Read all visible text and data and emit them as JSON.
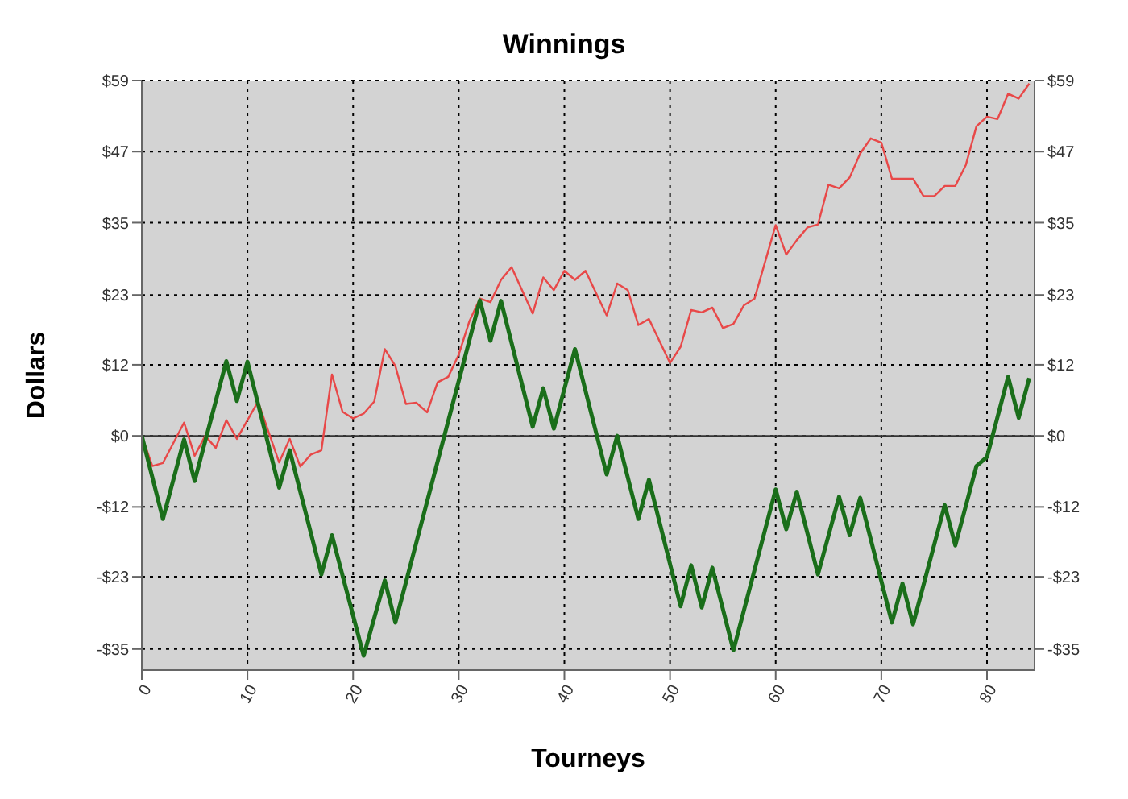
{
  "chart_data": {
    "type": "line",
    "title": "Winnings",
    "xlabel": "Tourneys",
    "ylabel": "Dollars",
    "xlim": [
      0,
      84.5
    ],
    "xticks": [
      0,
      10,
      20,
      30,
      40,
      50,
      60,
      70,
      80
    ],
    "ylim": [
      -38.9,
      59
    ],
    "yticks": [
      {
        "value": -35.4,
        "label": "-$35"
      },
      {
        "value": -23.4,
        "label": "-$23"
      },
      {
        "value": -11.8,
        "label": "-$12"
      },
      {
        "value": 0,
        "label": "$0"
      },
      {
        "value": 11.8,
        "label": "$12"
      },
      {
        "value": 23.4,
        "label": "$23"
      },
      {
        "value": 35.4,
        "label": "$35"
      },
      {
        "value": 47.2,
        "label": "$47"
      },
      {
        "value": 59,
        "label": "$59"
      }
    ],
    "y2lim": [
      -38.9,
      59
    ],
    "y2ticks": [
      {
        "value": -35.4,
        "label": "-$35"
      },
      {
        "value": -23.4,
        "label": "-$23"
      },
      {
        "value": -11.8,
        "label": "-$12"
      },
      {
        "value": 0,
        "label": "$0"
      },
      {
        "value": 11.8,
        "label": "$12"
      },
      {
        "value": 23.4,
        "label": "$23"
      },
      {
        "value": 35.4,
        "label": "$35"
      },
      {
        "value": 47.2,
        "label": "$47"
      },
      {
        "value": 59,
        "label": "$59"
      }
    ],
    "grid": true,
    "marker": "none",
    "line_style": "solid",
    "ref_lines": [
      {
        "axis": "y",
        "value": 0,
        "color": "#333333"
      }
    ],
    "series": [
      {
        "color": "#e84848",
        "x": [
          0,
          1,
          2,
          4,
          5,
          6,
          7,
          8,
          9,
          11,
          13,
          14,
          15,
          16,
          17,
          18,
          19,
          20,
          21,
          22,
          23,
          24,
          25,
          26,
          27,
          28,
          29,
          30,
          31,
          32,
          33,
          34,
          35,
          37,
          38,
          39,
          40,
          41,
          42,
          44,
          45,
          46,
          47,
          48,
          50,
          51,
          52,
          53,
          54,
          55,
          56,
          57,
          58,
          60,
          61,
          62,
          63,
          64,
          65,
          66,
          67,
          68,
          69,
          70,
          71,
          72,
          73,
          74,
          75,
          76,
          77,
          78,
          79,
          80,
          81,
          82,
          83,
          84
        ],
        "values": [
          0,
          -5,
          -4.5,
          2.2,
          -3.3,
          0,
          -2,
          2.6,
          -0.5,
          5.7,
          -4.4,
          -0.5,
          -5.1,
          -3.1,
          -2.4,
          10.2,
          4,
          2.9,
          3.7,
          5.7,
          14.4,
          11.6,
          5.3,
          5.5,
          3.9,
          8.9,
          9.8,
          13.5,
          19,
          22.8,
          22.2,
          25.9,
          28,
          20.3,
          26.3,
          24.2,
          27.4,
          25.9,
          27.4,
          20,
          25.3,
          24.2,
          18.4,
          19.4,
          12.1,
          14.8,
          20.9,
          20.5,
          21.3,
          17.9,
          18.6,
          21.7,
          22.8,
          35,
          30.1,
          32.5,
          34.6,
          35.1,
          41.7,
          41.1,
          42.9,
          46.9,
          49.4,
          48.7,
          42.7,
          42.7,
          42.7,
          39.8,
          39.8,
          41.5,
          41.5,
          45,
          51.4,
          53,
          52.6,
          56.8,
          56,
          58.5
        ]
      },
      {
        "color": "#1a6e1a",
        "x": [
          0,
          2,
          4,
          5,
          8,
          9,
          10,
          13,
          14,
          17,
          18,
          21,
          23,
          24,
          32,
          33,
          34,
          37,
          38,
          39,
          41,
          44,
          45,
          47,
          48,
          51,
          52,
          53,
          54,
          56,
          60,
          61,
          62,
          64,
          66,
          67,
          68,
          71,
          72,
          73,
          76,
          77,
          79,
          80,
          82,
          83,
          84
        ],
        "values": [
          0,
          -13.8,
          -0.6,
          -7.5,
          12.4,
          5.8,
          12.3,
          -8.6,
          -2.4,
          -23,
          -16.5,
          -36.5,
          -24,
          -31,
          22.5,
          15.8,
          22.4,
          1.5,
          7.9,
          1.2,
          14.4,
          -6.4,
          0,
          -13.8,
          -7.3,
          -28.3,
          -21.5,
          -28.5,
          -21.9,
          -35.6,
          -8.9,
          -15.5,
          -9.3,
          -23,
          -10.1,
          -16.5,
          -10.3,
          -31,
          -24.5,
          -31.3,
          -11.5,
          -18.2,
          -5,
          -3.5,
          9.8,
          3,
          9.6
        ]
      }
    ]
  }
}
